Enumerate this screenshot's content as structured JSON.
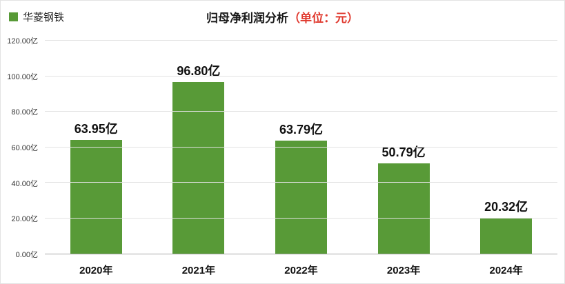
{
  "legend": {
    "label": "华菱钢铁",
    "color": "#589a37"
  },
  "title": {
    "main": "归母净利润分析",
    "unit": "（单位：元）"
  },
  "chart_data": {
    "type": "bar",
    "title": "归母净利润分析（单位：元）",
    "series_name": "华菱钢铁",
    "categories": [
      "2020年",
      "2021年",
      "2022年",
      "2023年",
      "2024年"
    ],
    "values": [
      63.95,
      96.8,
      63.79,
      50.79,
      20.32
    ],
    "value_labels": [
      "63.95亿",
      "96.80亿",
      "63.79亿",
      "50.79亿",
      "20.32亿"
    ],
    "xlabel": "",
    "ylabel": "",
    "ylim": [
      0,
      120
    ],
    "ytick_step": 20,
    "ytick_labels": [
      "0.00亿",
      "20.00亿",
      "40.00亿",
      "60.00亿",
      "80.00亿",
      "100.00亿",
      "120.00亿"
    ],
    "grid": true,
    "legend_position": "top-left",
    "bar_color": "#589a37"
  }
}
